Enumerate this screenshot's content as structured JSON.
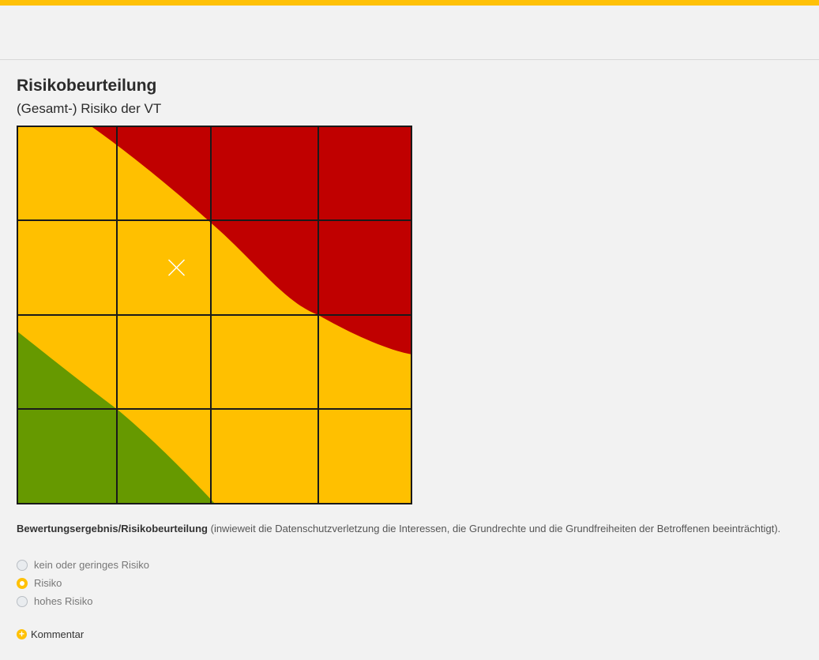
{
  "colors": {
    "accent": "#ffc107",
    "risk_high": "#c00000",
    "risk_medium": "#ffc000",
    "risk_low": "#669900",
    "grid": "#1a1a1a"
  },
  "page": {
    "title": "Risikobeurteilung",
    "subtitle": "(Gesamt-) Risiko der VT"
  },
  "matrix": {
    "columns": 4,
    "rows": 4,
    "marker": {
      "column": 2,
      "row_from_top": 2
    },
    "marker_icon": "cross-icon"
  },
  "question": {
    "label_bold": "Bewertungsergebnis/Risikobeurteilung",
    "label_rest": " (inwieweit die Datenschutzverletzung die Interessen, die Grundrechte und die Grundfreiheiten der Betroffenen beeinträchtigt)."
  },
  "options": [
    {
      "label": "kein oder geringes Risiko",
      "checked": false
    },
    {
      "label": "Risiko",
      "checked": true
    },
    {
      "label": "hohes Risiko",
      "checked": false
    }
  ],
  "comment": {
    "icon": "plus-circle-icon",
    "label": "Kommentar"
  }
}
